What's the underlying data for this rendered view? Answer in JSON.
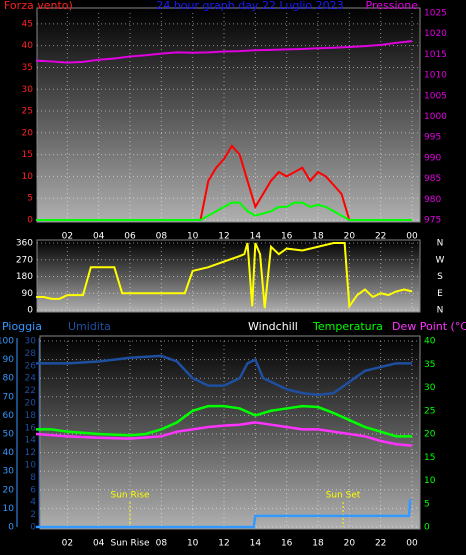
{
  "chart_data": [
    {
      "type": "line",
      "title": "24 hour graph day  22 Luglio 2023",
      "y_label": "Forza vento)",
      "y2_label": "Pressione",
      "title_color": "#1a1aff",
      "y_color": "#ff2020",
      "y2_color": "#e000e0",
      "xlim": [
        0,
        24
      ],
      "xticks": [
        {
          "value": 2,
          "label": "02"
        },
        {
          "value": 4,
          "label": "04"
        },
        {
          "value": 6,
          "label": "06"
        },
        {
          "value": 8,
          "label": "08"
        },
        10,
        12,
        14,
        16,
        18,
        20,
        22,
        {
          "value": 24,
          "label": "00"
        }
      ],
      "ylim": [
        0,
        47.5
      ],
      "yticks": [
        0,
        5,
        10,
        15,
        20,
        25,
        30,
        35,
        40,
        45
      ],
      "y2lim": [
        975,
        1025
      ],
      "y2ticks": [
        975,
        980,
        985,
        990,
        995,
        1000,
        1005,
        1010,
        1015,
        1020,
        1025
      ],
      "series": [
        {
          "color": "#ff0000",
          "x": [
            0,
            10,
            10.5,
            11,
            11.5,
            12,
            12.5,
            13,
            13.5,
            14,
            14.5,
            15,
            15.5,
            16,
            16.5,
            17,
            17.5,
            18,
            18.5,
            19,
            19.5,
            20,
            20.5,
            21,
            24
          ],
          "values": [
            0,
            0,
            0,
            9,
            12,
            14,
            17,
            15,
            9,
            3,
            6,
            9,
            11,
            10,
            11,
            12,
            9,
            11,
            10,
            8,
            6,
            0,
            0,
            0,
            0
          ]
        },
        {
          "color": "#00ff00",
          "x": [
            0,
            10,
            10.5,
            11,
            11.5,
            12,
            12.5,
            13,
            13.5,
            14,
            14.5,
            15,
            15.5,
            16,
            16.5,
            17,
            17.5,
            18,
            18.5,
            19,
            19.5,
            20,
            20.5,
            21,
            24
          ],
          "values": [
            0,
            0,
            0,
            1,
            2,
            3,
            4,
            4,
            2,
            1,
            1.5,
            2,
            3,
            3,
            4,
            4,
            3,
            3.5,
            3,
            2,
            1,
            0,
            0,
            0,
            0
          ]
        },
        {
          "color": "#e000e0",
          "axis": "y2",
          "x": [
            0,
            1,
            2,
            3,
            4,
            5,
            6,
            7,
            8,
            9,
            10,
            11,
            12,
            13,
            14,
            15,
            16,
            17,
            18,
            19,
            20,
            21,
            22,
            23,
            24
          ],
          "values": [
            1013.5,
            1013.3,
            1013,
            1013.2,
            1013.7,
            1014,
            1014.5,
            1014.8,
            1015.2,
            1015.5,
            1015.4,
            1015.5,
            1015.7,
            1015.8,
            1016,
            1016.1,
            1016.2,
            1016.3,
            1016.5,
            1016.6,
            1016.8,
            1017,
            1017.3,
            1017.8,
            1018.2
          ]
        }
      ]
    },
    {
      "type": "line",
      "y_color": "#ffffff",
      "xlim": [
        0,
        24
      ],
      "xticks": [
        2,
        4,
        6,
        8,
        10,
        12,
        14,
        16,
        18,
        20,
        22,
        24
      ],
      "ylim": [
        0,
        360
      ],
      "yticks": [
        0,
        90,
        180,
        270,
        360
      ],
      "compass": [
        "N",
        "E",
        "S",
        "W",
        "N"
      ],
      "series": [
        {
          "color": "#ffff00",
          "x": [
            0,
            0.5,
            1,
            1.5,
            2,
            3,
            3.5,
            4,
            5,
            5.5,
            6,
            7,
            8,
            9,
            9.5,
            10,
            11,
            12,
            13,
            13.3,
            13.5,
            13.8,
            14,
            14.3,
            14.6,
            15,
            15.5,
            16,
            17,
            18,
            19,
            19.7,
            20,
            20.5,
            21,
            21.5,
            22,
            22.5,
            23,
            23.5,
            24
          ],
          "values": [
            70,
            70,
            60,
            60,
            80,
            80,
            230,
            230,
            230,
            90,
            90,
            90,
            90,
            90,
            90,
            210,
            230,
            260,
            290,
            300,
            360,
            20,
            360,
            300,
            10,
            340,
            300,
            330,
            320,
            340,
            360,
            360,
            20,
            80,
            110,
            70,
            90,
            80,
            100,
            110,
            100
          ]
        }
      ]
    },
    {
      "type": "line",
      "y_label": "Pioggia",
      "y2_label": "Umidita",
      "windchill_label": "Windchill",
      "y3_label": "Temperatura",
      "dew_label": "Dew Point (°C)",
      "y_color": "#3399ff",
      "y2_color": "#1e4fa0",
      "y3_color": "#00ff00",
      "windchill_color": "#ffffff",
      "dew_color": "#ff33ff",
      "xlim": [
        0,
        24
      ],
      "xticks": [
        {
          "value": 2,
          "label": "02"
        },
        {
          "value": 4,
          "label": "04"
        },
        {
          "value": 6,
          "label": "Sun Rise"
        },
        {
          "value": 8,
          "label": "08"
        },
        10,
        12,
        14,
        16,
        18,
        20,
        22,
        {
          "value": 24,
          "label": "00"
        }
      ],
      "annotations": [
        {
          "text": "Sun Rise",
          "x": 6
        },
        {
          "text": "Sun Set",
          "x": 19.6
        }
      ],
      "annotation_color": "#ffff00",
      "ylim": [
        0,
        100
      ],
      "yticks": [
        0,
        10,
        20,
        30,
        40,
        50,
        60,
        70,
        80,
        90,
        100
      ],
      "y2lim": [
        0,
        30
      ],
      "y2ticks": [
        0,
        2,
        4,
        6,
        8,
        10,
        12,
        14,
        16,
        18,
        20,
        22,
        24,
        26,
        28,
        30
      ],
      "y3lim": [
        0,
        40
      ],
      "y3ticks": [
        0,
        5,
        10,
        15,
        20,
        25,
        30,
        35,
        40
      ],
      "series": [
        {
          "color": "#1e4fa0",
          "x": [
            0,
            2,
            4,
            6,
            8,
            9,
            10,
            11,
            12,
            13,
            13.5,
            14,
            14.5,
            15,
            16,
            17,
            18,
            19,
            20,
            21,
            22,
            23,
            24
          ],
          "values": [
            88,
            88,
            89,
            91,
            92,
            89,
            80,
            76,
            76,
            80,
            88,
            90,
            80,
            78,
            74,
            72,
            71,
            72,
            78,
            84,
            86,
            88,
            88
          ]
        },
        {
          "color": "#00ff00",
          "axis": "y3",
          "x": [
            0,
            1,
            2,
            4,
            6,
            7,
            8,
            9,
            10,
            11,
            12,
            13,
            14,
            15,
            16,
            17,
            18,
            19,
            20,
            21,
            22,
            23,
            24
          ],
          "values": [
            21,
            21,
            20.5,
            20,
            19.7,
            20,
            21,
            22.5,
            25,
            26,
            26,
            25.5,
            24,
            25,
            25.5,
            26,
            25.8,
            24.5,
            23,
            21.5,
            20.5,
            19.5,
            19.5
          ]
        },
        {
          "color": "#ff33ff",
          "axis": "y3",
          "x": [
            0,
            2,
            4,
            6,
            8,
            9,
            10,
            11,
            12,
            13,
            14,
            15,
            16,
            17,
            18,
            19,
            20,
            21,
            22,
            23,
            24
          ],
          "values": [
            20,
            19.5,
            19.2,
            19,
            19.5,
            20.5,
            21,
            21.5,
            21.8,
            22,
            22.5,
            22,
            21.5,
            21,
            21,
            20.5,
            20,
            19.5,
            18.5,
            17.8,
            17.5
          ]
        },
        {
          "color": "#3399ff",
          "axis": "y2",
          "x": [
            0,
            13.9,
            14,
            23.8,
            23.9
          ],
          "values": [
            0,
            0,
            1.8,
            1.8,
            4.5
          ]
        }
      ]
    }
  ]
}
